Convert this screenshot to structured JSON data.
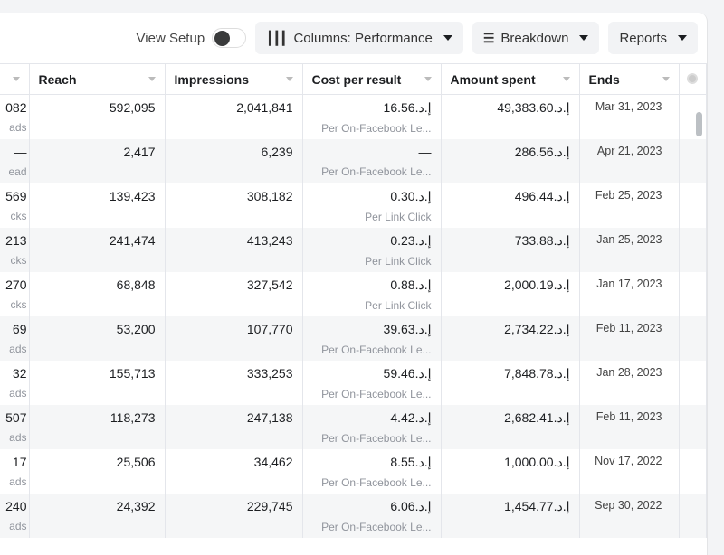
{
  "toolbar": {
    "view_setup": "View Setup",
    "view_setup_on": false,
    "columns": "Columns: Performance",
    "breakdown": "Breakdown",
    "reports": "Reports"
  },
  "headers": [
    "Reach",
    "Impressions",
    "Cost per result",
    "Amount spent",
    "Ends"
  ],
  "rows": [
    {
      "left": "082",
      "left_sub": "ads",
      "reach": "592,095",
      "impressions": "2,041,841",
      "cost": "16.56.إ.د",
      "cost_sub": "Per On-Facebook Le...",
      "amount": "49,383.60.إ.د",
      "ends": "Mar 31, 2023"
    },
    {
      "left": "—",
      "left_sub": "ead",
      "reach": "2,417",
      "impressions": "6,239",
      "cost": "—",
      "cost_sub": "Per On-Facebook Le...",
      "amount": "286.56.إ.د",
      "ends": "Apr 21, 2023"
    },
    {
      "left": "569",
      "left_sub": "cks",
      "reach": "139,423",
      "impressions": "308,182",
      "cost": "0.30.إ.د",
      "cost_sub": "Per Link Click",
      "amount": "496.44.إ.د",
      "ends": "Feb 25, 2023"
    },
    {
      "left": "213",
      "left_sub": "cks",
      "reach": "241,474",
      "impressions": "413,243",
      "cost": "0.23.إ.د",
      "cost_sub": "Per Link Click",
      "amount": "733.88.إ.د",
      "ends": "Jan 25, 2023"
    },
    {
      "left": "270",
      "left_sub": "cks",
      "reach": "68,848",
      "impressions": "327,542",
      "cost": "0.88.إ.د",
      "cost_sub": "Per Link Click",
      "amount": "2,000.19.إ.د",
      "ends": "Jan 17, 2023"
    },
    {
      "left": "69",
      "left_sub": "ads",
      "reach": "53,200",
      "impressions": "107,770",
      "cost": "39.63.إ.د",
      "cost_sub": "Per On-Facebook Le...",
      "amount": "2,734.22.إ.د",
      "ends": "Feb 11, 2023"
    },
    {
      "left": "32",
      "left_sub": "ads",
      "reach": "155,713",
      "impressions": "333,253",
      "cost": "59.46.إ.د",
      "cost_sub": "Per On-Facebook Le...",
      "amount": "7,848.78.إ.د",
      "ends": "Jan 28, 2023"
    },
    {
      "left": "507",
      "left_sub": "ads",
      "reach": "118,273",
      "impressions": "247,138",
      "cost": "4.42.إ.د",
      "cost_sub": "Per On-Facebook Le...",
      "amount": "2,682.41.إ.د",
      "ends": "Feb 11, 2023"
    },
    {
      "left": "17",
      "left_sub": "ads",
      "reach": "25,506",
      "impressions": "34,462",
      "cost": "8.55.إ.د",
      "cost_sub": "Per On-Facebook Le...",
      "amount": "1,000.00.إ.د",
      "ends": "Nov 17, 2022"
    },
    {
      "left": "240",
      "left_sub": "ads",
      "reach": "24,392",
      "impressions": "229,745",
      "cost": "6.06.إ.د",
      "cost_sub": "Per On-Facebook Le...",
      "amount": "1,454.77.إ.د",
      "ends": "Sep 30, 2022"
    }
  ]
}
